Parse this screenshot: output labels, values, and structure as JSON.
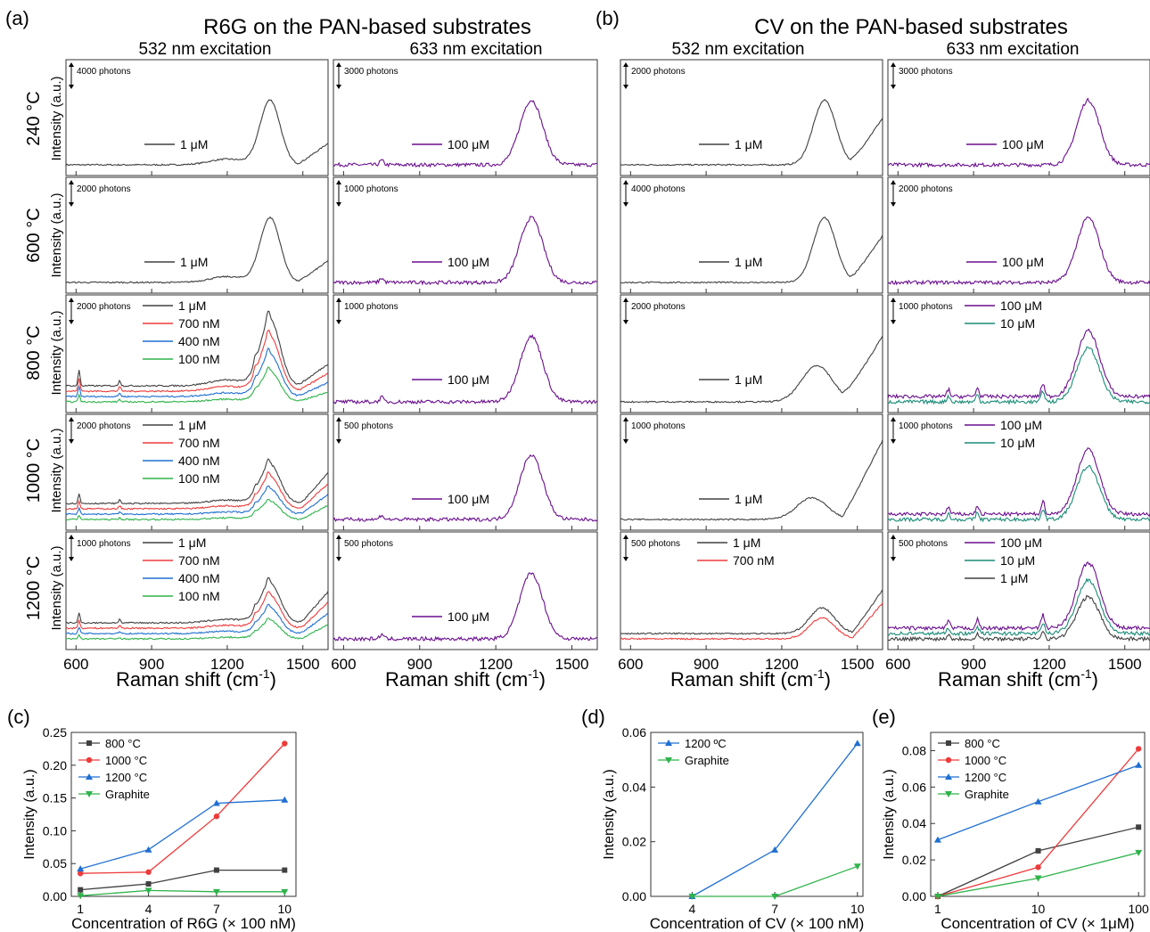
{
  "panel_letters": [
    "(a)",
    "(b)",
    "(c)",
    "(d)",
    "(e)"
  ],
  "group_titles": [
    "R6G on the PAN-based substrates",
    "CV on the PAN-based substrates"
  ],
  "excitations": [
    "532 nm excitation",
    "633 nm excitation"
  ],
  "row_temps": [
    "240 °C",
    "600 °C",
    "800 °C",
    "1000 °C",
    "1200 °C"
  ],
  "y_label_intensity": "Intensity (a.u.)",
  "raman_xlabel": "Raman shift (cm",
  "raman_xlabel_sup": "-1",
  "raman_xlabel_close": ")",
  "raman_ticks": [
    "600",
    "900",
    "1200",
    "1500"
  ],
  "colors": {
    "c1uM": "#404040",
    "c700": "#ee3b3b",
    "c400": "#1f6fd1",
    "c100nM": "#2eb34a",
    "c100uM": "#6a0f8e",
    "c10uM": "#1a8c78",
    "s800": "#404040",
    "s1000": "#ee3b3b",
    "s1200": "#1f6fd1",
    "sGraphite": "#2eb34a"
  },
  "raman_panels": [
    [
      {
        "scale": "4000 photons",
        "legend": [
          "1 μM"
        ]
      },
      {
        "scale": "3000 photons",
        "legend": [
          "100 μM"
        ]
      },
      {
        "scale": "2000 photons",
        "legend": [
          "1 μM"
        ]
      },
      {
        "scale": "3000 photons",
        "legend": [
          "100 μM"
        ]
      }
    ],
    [
      {
        "scale": "2000 photons",
        "legend": [
          "1 μM"
        ]
      },
      {
        "scale": "1000 photons",
        "legend": [
          "100 μM"
        ]
      },
      {
        "scale": "4000 photons",
        "legend": [
          "1 μM"
        ]
      },
      {
        "scale": "2000 photons",
        "legend": [
          "100 μM"
        ]
      }
    ],
    [
      {
        "scale": "2000 photons",
        "legend": [
          "1 μM",
          "700 nM",
          "400 nM",
          "100 nM"
        ]
      },
      {
        "scale": "1000 photons",
        "legend": [
          "100 μM"
        ]
      },
      {
        "scale": "2000 photons",
        "legend": [
          "1 μM"
        ]
      },
      {
        "scale": "1000 photons",
        "legend": [
          "100 μM",
          "10 μM"
        ]
      }
    ],
    [
      {
        "scale": "2000 photons",
        "legend": [
          "1 μM",
          "700 nM",
          "400 nM",
          "100 nM"
        ]
      },
      {
        "scale": "500 photons",
        "legend": [
          "100 μM"
        ]
      },
      {
        "scale": "1000 photons",
        "legend": [
          "1 μM"
        ]
      },
      {
        "scale": "1000 photons",
        "legend": [
          "100 μM",
          "10 μM"
        ]
      }
    ],
    [
      {
        "scale": "1000 photons",
        "legend": [
          "1 μM",
          "700 nM",
          "400 nM",
          "100 nM"
        ]
      },
      {
        "scale": "500 photons",
        "legend": [
          "100 μM"
        ]
      },
      {
        "scale": "500 photons",
        "legend": [
          "1 μM",
          "700 nM"
        ]
      },
      {
        "scale": "500 photons",
        "legend": [
          "100 μM",
          "10 μM",
          "1 μM"
        ]
      }
    ]
  ],
  "chart_data": [
    {
      "type": "line",
      "panel": "(c)",
      "xlabel": "Concentration of R6G (× 100 nM)",
      "ylabel": "Intensity (a.u.)",
      "x": [
        1,
        4,
        7,
        10
      ],
      "x_ticks": [
        "1",
        "4",
        "7",
        "10"
      ],
      "xlim": [
        0.6,
        10.5
      ],
      "ylim": [
        0,
        0.25
      ],
      "y_ticks": [
        "0.00",
        "0.05",
        "0.10",
        "0.15",
        "0.20",
        "0.25"
      ],
      "legend_position": "top-left",
      "series": [
        {
          "name": "800 °C",
          "values": [
            0.01,
            0.019,
            0.04,
            0.04
          ]
        },
        {
          "name": "1000 °C",
          "values": [
            0.035,
            0.037,
            0.122,
            0.233
          ]
        },
        {
          "name": "1200 °C",
          "values": [
            0.042,
            0.071,
            0.142,
            0.147
          ]
        },
        {
          "name": "Graphite",
          "values": [
            0.001,
            0.009,
            0.007,
            0.007
          ]
        }
      ]
    },
    {
      "type": "line",
      "panel": "(d)",
      "xlabel": "Concentration of CV (× 100 nM)",
      "ylabel": "Intensity (a.u.)",
      "x": [
        4,
        7,
        10
      ],
      "x_ticks": [
        "4",
        "7",
        "10"
      ],
      "xlim": [
        2.5,
        10.2
      ],
      "ylim": [
        0,
        0.06
      ],
      "y_ticks": [
        "0.00",
        "0.02",
        "0.04",
        "0.06"
      ],
      "legend_position": "top-left",
      "series": [
        {
          "name": "1200 ºC",
          "values": [
            0.0,
            0.017,
            0.056
          ]
        },
        {
          "name": "Graphite",
          "values": [
            0.0,
            0.0,
            0.011
          ]
        }
      ]
    },
    {
      "type": "line",
      "panel": "(e)",
      "xlabel": "Concentration of CV (× 1μM)",
      "ylabel": "Intensity (a.u.)",
      "x": [
        1,
        10,
        100
      ],
      "x_ticks": [
        "1",
        "10",
        "100"
      ],
      "x_scale": "log",
      "ylim": [
        0,
        0.09
      ],
      "y_ticks": [
        "0.00",
        "0.02",
        "0.04",
        "0.06",
        "0.08"
      ],
      "legend_position": "top-left",
      "series": [
        {
          "name": "800 °C",
          "values": [
            0.0,
            0.025,
            0.038
          ]
        },
        {
          "name": "1000 °C",
          "values": [
            0.0,
            0.016,
            0.081
          ]
        },
        {
          "name": "1200 °C",
          "values": [
            0.031,
            0.052,
            0.072
          ]
        },
        {
          "name": "Graphite",
          "values": [
            0.0,
            0.01,
            0.024
          ]
        }
      ]
    }
  ]
}
